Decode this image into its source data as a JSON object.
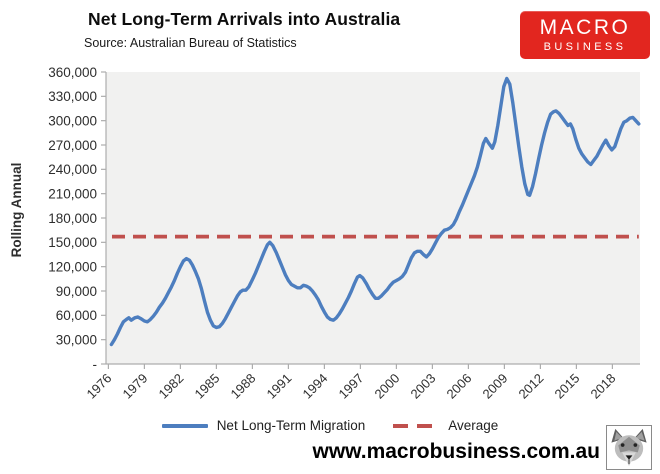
{
  "header": {
    "title": "Net Long-Term Arrivals into Australia",
    "subtitle": "Source: Australian Bureau of Statistics"
  },
  "brand": {
    "line1": "MACRO",
    "line2": "BUSINESS",
    "bg_color": "#e2261f",
    "text_color": "#ffffff"
  },
  "footer": {
    "website": "www.macrobusiness.com.au",
    "logo": "wolf-head-icon"
  },
  "legend": {
    "items": [
      {
        "label": "Net Long-Term Migration",
        "color": "#4d7ebf",
        "style": "solid"
      },
      {
        "label": "Average",
        "color": "#c0504d",
        "style": "dashed"
      }
    ]
  },
  "chart_data": {
    "type": "line",
    "title": "Net Long-Term Arrivals into Australia",
    "subtitle": "Source: Australian Bureau of Statistics",
    "xlabel": "",
    "ylabel": "Rolling Annual",
    "ylim": [
      0,
      360000
    ],
    "xlim": [
      1975.8,
      2020.3
    ],
    "grid": false,
    "legend_position": "bottom",
    "plot_bg": "#f1f1f0",
    "axis_color": "#adadad",
    "y_ticks": [
      {
        "value": 360000,
        "label": "360,000"
      },
      {
        "value": 330000,
        "label": "330,000"
      },
      {
        "value": 300000,
        "label": "300,000"
      },
      {
        "value": 270000,
        "label": "270,000"
      },
      {
        "value": 240000,
        "label": "240,000"
      },
      {
        "value": 210000,
        "label": "210,000"
      },
      {
        "value": 180000,
        "label": "180,000"
      },
      {
        "value": 150000,
        "label": "150,000"
      },
      {
        "value": 120000,
        "label": "120,000"
      },
      {
        "value": 90000,
        "label": "90,000"
      },
      {
        "value": 60000,
        "label": "60,000"
      },
      {
        "value": 30000,
        "label": "30,000"
      },
      {
        "value": 0,
        "label": "-"
      }
    ],
    "x_ticks": [
      {
        "value": 1976,
        "label": "1976"
      },
      {
        "value": 1979,
        "label": "1979"
      },
      {
        "value": 1982,
        "label": "1982"
      },
      {
        "value": 1985,
        "label": "1985"
      },
      {
        "value": 1988,
        "label": "1988"
      },
      {
        "value": 1991,
        "label": "1991"
      },
      {
        "value": 1994,
        "label": "1994"
      },
      {
        "value": 1997,
        "label": "1997"
      },
      {
        "value": 2000,
        "label": "2000"
      },
      {
        "value": 2003,
        "label": "2003"
      },
      {
        "value": 2006,
        "label": "2006"
      },
      {
        "value": 2009,
        "label": "2009"
      },
      {
        "value": 2012,
        "label": "2012"
      },
      {
        "value": 2015,
        "label": "2015"
      },
      {
        "value": 2018,
        "label": "2018"
      }
    ],
    "series": [
      {
        "name": "Net Long-Term Migration",
        "type": "line",
        "color": "#4d7ebf",
        "points": [
          [
            1976.25,
            24000
          ],
          [
            1976.5,
            30000
          ],
          [
            1976.75,
            37000
          ],
          [
            1977,
            45000
          ],
          [
            1977.25,
            52000
          ],
          [
            1977.5,
            55000
          ],
          [
            1977.7,
            57000
          ],
          [
            1977.9,
            54000
          ],
          [
            1978.2,
            57000
          ],
          [
            1978.45,
            58000
          ],
          [
            1978.7,
            56000
          ],
          [
            1979,
            53000
          ],
          [
            1979.25,
            52000
          ],
          [
            1979.5,
            55000
          ],
          [
            1979.75,
            59000
          ],
          [
            1980,
            64000
          ],
          [
            1980.25,
            70000
          ],
          [
            1980.5,
            75000
          ],
          [
            1980.75,
            81000
          ],
          [
            1981,
            88000
          ],
          [
            1981.25,
            95000
          ],
          [
            1981.5,
            103000
          ],
          [
            1981.75,
            112000
          ],
          [
            1982,
            120000
          ],
          [
            1982.25,
            127000
          ],
          [
            1982.5,
            130000
          ],
          [
            1982.75,
            128000
          ],
          [
            1983,
            122000
          ],
          [
            1983.25,
            114000
          ],
          [
            1983.5,
            105000
          ],
          [
            1983.75,
            93000
          ],
          [
            1984,
            78000
          ],
          [
            1984.25,
            64000
          ],
          [
            1984.5,
            54000
          ],
          [
            1984.75,
            47000
          ],
          [
            1985,
            45000
          ],
          [
            1985.25,
            46000
          ],
          [
            1985.5,
            50000
          ],
          [
            1985.75,
            56000
          ],
          [
            1986,
            63000
          ],
          [
            1986.25,
            70000
          ],
          [
            1986.5,
            77000
          ],
          [
            1986.75,
            84000
          ],
          [
            1987,
            89000
          ],
          [
            1987.2,
            91000
          ],
          [
            1987.45,
            91000
          ],
          [
            1987.7,
            95000
          ],
          [
            1988,
            104000
          ],
          [
            1988.25,
            112000
          ],
          [
            1988.5,
            121000
          ],
          [
            1988.75,
            130000
          ],
          [
            1989,
            139000
          ],
          [
            1989.25,
            147000
          ],
          [
            1989.45,
            150000
          ],
          [
            1989.7,
            146000
          ],
          [
            1990,
            137000
          ],
          [
            1990.25,
            128000
          ],
          [
            1990.5,
            119000
          ],
          [
            1990.75,
            110000
          ],
          [
            1991,
            103000
          ],
          [
            1991.25,
            98000
          ],
          [
            1991.5,
            96000
          ],
          [
            1991.75,
            94000
          ],
          [
            1992,
            94000
          ],
          [
            1992.25,
            97000
          ],
          [
            1992.5,
            96000
          ],
          [
            1992.75,
            94000
          ],
          [
            1993,
            90000
          ],
          [
            1993.25,
            85000
          ],
          [
            1993.5,
            79000
          ],
          [
            1993.75,
            71000
          ],
          [
            1994,
            64000
          ],
          [
            1994.25,
            58000
          ],
          [
            1994.5,
            55000
          ],
          [
            1994.75,
            54000
          ],
          [
            1995,
            57000
          ],
          [
            1995.25,
            62000
          ],
          [
            1995.5,
            68000
          ],
          [
            1995.75,
            75000
          ],
          [
            1996,
            82000
          ],
          [
            1996.25,
            90000
          ],
          [
            1996.5,
            99000
          ],
          [
            1996.75,
            107000
          ],
          [
            1996.95,
            109000
          ],
          [
            1997.2,
            106000
          ],
          [
            1997.5,
            99000
          ],
          [
            1997.75,
            92000
          ],
          [
            1998,
            86000
          ],
          [
            1998.25,
            81000
          ],
          [
            1998.5,
            81000
          ],
          [
            1998.75,
            84000
          ],
          [
            1999,
            88000
          ],
          [
            1999.25,
            92000
          ],
          [
            1999.5,
            97000
          ],
          [
            1999.75,
            101000
          ],
          [
            2000,
            103000
          ],
          [
            2000.25,
            105000
          ],
          [
            2000.5,
            108000
          ],
          [
            2000.75,
            113000
          ],
          [
            2001,
            122000
          ],
          [
            2001.25,
            131000
          ],
          [
            2001.5,
            137000
          ],
          [
            2001.75,
            139000
          ],
          [
            2002,
            139000
          ],
          [
            2002.25,
            135000
          ],
          [
            2002.5,
            132000
          ],
          [
            2002.75,
            136000
          ],
          [
            2003,
            142000
          ],
          [
            2003.25,
            149000
          ],
          [
            2003.5,
            156000
          ],
          [
            2003.75,
            161000
          ],
          [
            2004,
            165000
          ],
          [
            2004.25,
            166000
          ],
          [
            2004.5,
            168000
          ],
          [
            2004.75,
            172000
          ],
          [
            2005,
            179000
          ],
          [
            2005.25,
            188000
          ],
          [
            2005.5,
            196000
          ],
          [
            2005.75,
            205000
          ],
          [
            2006,
            214000
          ],
          [
            2006.25,
            223000
          ],
          [
            2006.5,
            232000
          ],
          [
            2006.75,
            243000
          ],
          [
            2007,
            257000
          ],
          [
            2007.25,
            272000
          ],
          [
            2007.45,
            278000
          ],
          [
            2007.7,
            272000
          ],
          [
            2008,
            266000
          ],
          [
            2008.2,
            274000
          ],
          [
            2008.45,
            294000
          ],
          [
            2008.7,
            318000
          ],
          [
            2008.95,
            342000
          ],
          [
            2009.2,
            352000
          ],
          [
            2009.45,
            345000
          ],
          [
            2009.7,
            322000
          ],
          [
            2009.95,
            295000
          ],
          [
            2010.2,
            268000
          ],
          [
            2010.45,
            243000
          ],
          [
            2010.7,
            222000
          ],
          [
            2010.95,
            209000
          ],
          [
            2011.1,
            208000
          ],
          [
            2011.35,
            219000
          ],
          [
            2011.6,
            235000
          ],
          [
            2011.85,
            253000
          ],
          [
            2012.1,
            270000
          ],
          [
            2012.35,
            285000
          ],
          [
            2012.6,
            298000
          ],
          [
            2012.85,
            308000
          ],
          [
            2013.1,
            311000
          ],
          [
            2013.3,
            312000
          ],
          [
            2013.55,
            309000
          ],
          [
            2013.8,
            304000
          ],
          [
            2014.05,
            299000
          ],
          [
            2014.3,
            294000
          ],
          [
            2014.5,
            296000
          ],
          [
            2014.7,
            290000
          ],
          [
            2014.95,
            277000
          ],
          [
            2015.2,
            266000
          ],
          [
            2015.45,
            259000
          ],
          [
            2015.7,
            254000
          ],
          [
            2015.95,
            249000
          ],
          [
            2016.2,
            246000
          ],
          [
            2016.45,
            251000
          ],
          [
            2016.7,
            256000
          ],
          [
            2016.95,
            263000
          ],
          [
            2017.2,
            270000
          ],
          [
            2017.45,
            276000
          ],
          [
            2017.7,
            269000
          ],
          [
            2017.95,
            264000
          ],
          [
            2018.2,
            268000
          ],
          [
            2018.45,
            279000
          ],
          [
            2018.7,
            290000
          ],
          [
            2018.95,
            298000
          ],
          [
            2019.2,
            300000
          ],
          [
            2019.45,
            303000
          ],
          [
            2019.7,
            304000
          ],
          [
            2019.95,
            300000
          ],
          [
            2020.2,
            296000
          ]
        ]
      },
      {
        "name": "Average",
        "type": "hline",
        "color": "#c0504d",
        "dash": true,
        "value": 157000,
        "x_start": 1976.3,
        "x_end": 2020.2
      }
    ]
  }
}
